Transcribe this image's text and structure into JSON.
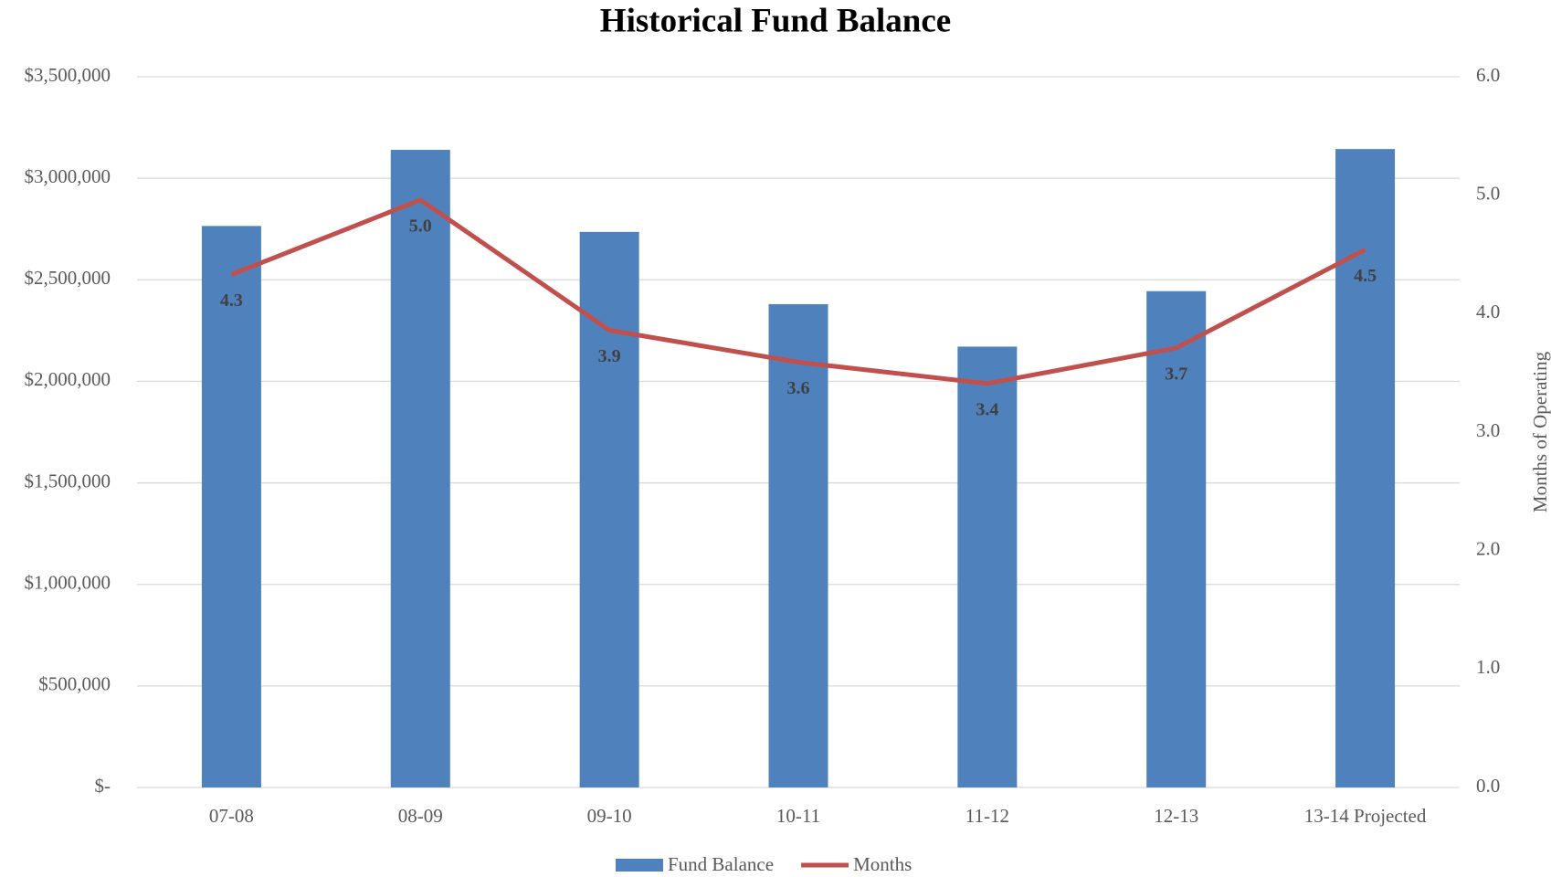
{
  "chart_data": {
    "type": "bar",
    "title": "Historical Fund Balance",
    "categories": [
      "07-08",
      "08-09",
      "09-10",
      "10-11",
      "11-12",
      "12-13",
      "13-14 Projected"
    ],
    "series": [
      {
        "name": "Fund Balance",
        "type": "bar",
        "color": "#4f81bd",
        "values": [
          2765000,
          3140000,
          2736000,
          2380000,
          2171000,
          2444000,
          3144000
        ]
      },
      {
        "name": "Months",
        "type": "line",
        "axis": "y2",
        "color": "#c0504d",
        "values": [
          4.33,
          4.96,
          3.86,
          3.59,
          3.41,
          3.71,
          4.54
        ],
        "value_labels": [
          "4.3",
          "5.0",
          "3.9",
          "3.6",
          "3.4",
          "3.7",
          "4.5"
        ]
      }
    ],
    "ylim": [
      0,
      3500000
    ],
    "yticks": [
      {
        "value": 0,
        "label": "$-"
      },
      {
        "value": 500000,
        "label": "$500,000"
      },
      {
        "value": 1000000,
        "label": "$1,000,000"
      },
      {
        "value": 1500000,
        "label": "$1,500,000"
      },
      {
        "value": 2000000,
        "label": "$2,000,000"
      },
      {
        "value": 2500000,
        "label": "$2,500,000"
      },
      {
        "value": 3000000,
        "label": "$3,000,000"
      },
      {
        "value": 3500000,
        "label": "$3,500,000"
      }
    ],
    "y2lim": [
      0,
      6
    ],
    "y2ticks": [
      {
        "value": 0,
        "label": "0.0"
      },
      {
        "value": 1,
        "label": "1.0"
      },
      {
        "value": 2,
        "label": "2.0"
      },
      {
        "value": 3,
        "label": "3.0"
      },
      {
        "value": 4,
        "label": "4.0"
      },
      {
        "value": 5,
        "label": "5.0"
      },
      {
        "value": 6,
        "label": "6.0"
      }
    ],
    "y2label": "Months of Operating",
    "grid": true,
    "legend": "bottom"
  }
}
